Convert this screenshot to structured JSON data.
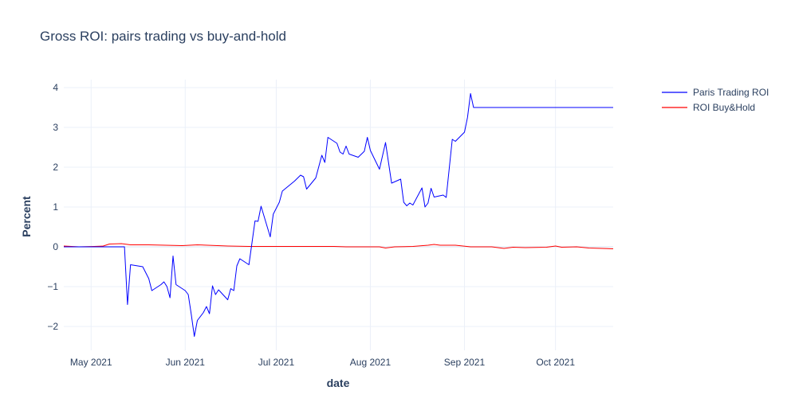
{
  "chart_data": {
    "type": "line",
    "title": "Gross ROI: pairs trading vs buy-and-hold",
    "xlabel": "date",
    "ylabel": "Percent",
    "xlim": [
      "2021-04-22",
      "2021-10-20"
    ],
    "ylim": [
      -2.6,
      4.2
    ],
    "x_ticks": [
      {
        "date": "2021-05-01",
        "label": "May 2021"
      },
      {
        "date": "2021-06-01",
        "label": "Jun 2021"
      },
      {
        "date": "2021-07-01",
        "label": "Jul 2021"
      },
      {
        "date": "2021-08-01",
        "label": "Aug 2021"
      },
      {
        "date": "2021-09-01",
        "label": "Sep 2021"
      },
      {
        "date": "2021-10-01",
        "label": "Oct 2021"
      }
    ],
    "y_ticks": [
      -2,
      -1,
      0,
      1,
      2,
      3,
      4
    ],
    "y_tick_labels": [
      "−2",
      "−1",
      "0",
      "1",
      "2",
      "3",
      "4"
    ],
    "grid": true,
    "legend_position": "top-right",
    "series": [
      {
        "name": "Paris Trading ROI",
        "color": "#0000ff",
        "points": [
          [
            "2021-04-22",
            0.0
          ],
          [
            "2021-05-05",
            0.0
          ],
          [
            "2021-05-12",
            0.0
          ],
          [
            "2021-05-13",
            -1.45
          ],
          [
            "2021-05-14",
            -0.45
          ],
          [
            "2021-05-18",
            -0.5
          ],
          [
            "2021-05-20",
            -0.8
          ],
          [
            "2021-05-21",
            -1.1
          ],
          [
            "2021-05-24",
            -0.95
          ],
          [
            "2021-05-25",
            -0.88
          ],
          [
            "2021-05-26",
            -1.0
          ],
          [
            "2021-05-27",
            -1.28
          ],
          [
            "2021-05-28",
            -0.23
          ],
          [
            "2021-05-29",
            -0.95
          ],
          [
            "2021-06-01",
            -1.1
          ],
          [
            "2021-06-02",
            -1.2
          ],
          [
            "2021-06-03",
            -1.7
          ],
          [
            "2021-06-04",
            -2.25
          ],
          [
            "2021-06-05",
            -1.85
          ],
          [
            "2021-06-07",
            -1.65
          ],
          [
            "2021-06-08",
            -1.5
          ],
          [
            "2021-06-09",
            -1.68
          ],
          [
            "2021-06-10",
            -0.98
          ],
          [
            "2021-06-11",
            -1.2
          ],
          [
            "2021-06-12",
            -1.08
          ],
          [
            "2021-06-15",
            -1.33
          ],
          [
            "2021-06-16",
            -1.05
          ],
          [
            "2021-06-17",
            -1.1
          ],
          [
            "2021-06-18",
            -0.48
          ],
          [
            "2021-06-19",
            -0.3
          ],
          [
            "2021-06-22",
            -0.45
          ],
          [
            "2021-06-23",
            0.1
          ],
          [
            "2021-06-24",
            0.65
          ],
          [
            "2021-06-25",
            0.64
          ],
          [
            "2021-06-26",
            1.02
          ],
          [
            "2021-06-29",
            0.25
          ],
          [
            "2021-06-30",
            0.82
          ],
          [
            "2021-07-02",
            1.12
          ],
          [
            "2021-07-03",
            1.4
          ],
          [
            "2021-07-07",
            1.65
          ],
          [
            "2021-07-09",
            1.8
          ],
          [
            "2021-07-10",
            1.76
          ],
          [
            "2021-07-11",
            1.45
          ],
          [
            "2021-07-14",
            1.73
          ],
          [
            "2021-07-16",
            2.3
          ],
          [
            "2021-07-17",
            2.12
          ],
          [
            "2021-07-18",
            2.75
          ],
          [
            "2021-07-21",
            2.6
          ],
          [
            "2021-07-22",
            2.38
          ],
          [
            "2021-07-23",
            2.33
          ],
          [
            "2021-07-24",
            2.53
          ],
          [
            "2021-07-25",
            2.33
          ],
          [
            "2021-07-28",
            2.25
          ],
          [
            "2021-07-30",
            2.4
          ],
          [
            "2021-07-31",
            2.75
          ],
          [
            "2021-08-01",
            2.42
          ],
          [
            "2021-08-04",
            1.95
          ],
          [
            "2021-08-06",
            2.62
          ],
          [
            "2021-08-08",
            1.6
          ],
          [
            "2021-08-11",
            1.7
          ],
          [
            "2021-08-12",
            1.12
          ],
          [
            "2021-08-13",
            1.03
          ],
          [
            "2021-08-14",
            1.1
          ],
          [
            "2021-08-15",
            1.05
          ],
          [
            "2021-08-18",
            1.48
          ],
          [
            "2021-08-19",
            1.0
          ],
          [
            "2021-08-20",
            1.1
          ],
          [
            "2021-08-21",
            1.47
          ],
          [
            "2021-08-22",
            1.25
          ],
          [
            "2021-08-25",
            1.3
          ],
          [
            "2021-08-26",
            1.24
          ],
          [
            "2021-08-28",
            2.7
          ],
          [
            "2021-08-29",
            2.65
          ],
          [
            "2021-09-01",
            2.88
          ],
          [
            "2021-09-02",
            3.25
          ],
          [
            "2021-09-03",
            3.85
          ],
          [
            "2021-09-04",
            3.5
          ],
          [
            "2021-10-20",
            3.5
          ]
        ]
      },
      {
        "name": "ROI Buy&Hold",
        "color": "#ff0000",
        "points": [
          [
            "2021-04-22",
            0.02
          ],
          [
            "2021-04-27",
            0.0
          ],
          [
            "2021-05-02",
            0.01
          ],
          [
            "2021-05-05",
            0.02
          ],
          [
            "2021-05-07",
            0.07
          ],
          [
            "2021-05-11",
            0.08
          ],
          [
            "2021-05-14",
            0.05
          ],
          [
            "2021-05-20",
            0.05
          ],
          [
            "2021-05-31",
            0.03
          ],
          [
            "2021-06-05",
            0.05
          ],
          [
            "2021-06-15",
            0.02
          ],
          [
            "2021-06-22",
            0.01
          ],
          [
            "2021-07-05",
            0.01
          ],
          [
            "2021-07-20",
            0.01
          ],
          [
            "2021-07-24",
            0.0
          ],
          [
            "2021-08-04",
            0.0
          ],
          [
            "2021-08-06",
            -0.03
          ],
          [
            "2021-08-09",
            0.0
          ],
          [
            "2021-08-15",
            0.01
          ],
          [
            "2021-08-20",
            0.04
          ],
          [
            "2021-08-22",
            0.06
          ],
          [
            "2021-08-24",
            0.04
          ],
          [
            "2021-08-29",
            0.04
          ],
          [
            "2021-09-03",
            0.0
          ],
          [
            "2021-09-10",
            0.0
          ],
          [
            "2021-09-14",
            -0.04
          ],
          [
            "2021-09-17",
            -0.01
          ],
          [
            "2021-09-21",
            -0.02
          ],
          [
            "2021-09-28",
            -0.01
          ],
          [
            "2021-10-01",
            0.02
          ],
          [
            "2021-10-03",
            -0.01
          ],
          [
            "2021-10-08",
            0.0
          ],
          [
            "2021-10-12",
            -0.03
          ],
          [
            "2021-10-20",
            -0.05
          ]
        ]
      }
    ]
  }
}
